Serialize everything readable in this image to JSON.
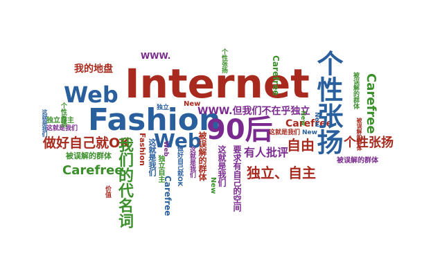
{
  "colors": {
    "maroon": "#a82a1e",
    "blue": "#2a5f9e",
    "green": "#3a8f2a",
    "purple": "#7a2a8f",
    "black": "#222222"
  },
  "words": {
    "internet": "Internet",
    "fashion": "Fashion",
    "web_big": "Web",
    "web_mid": "Web",
    "nineties": "90后",
    "gexing_big": "个性张扬",
    "gexing_small": "个性张扬",
    "duli_zizhu_big": "独立、自主",
    "duli_zizhu_small": "独立自主",
    "zuohao_ok": "做好自己就OK",
    "women_daiming": "我们的代名词",
    "carefree_blue": "Carefree",
    "carefree_right": "Carefree",
    "carefree_mid": "Carefree",
    "carefree_top": "Carefree",
    "carefree_vert": "Carefree",
    "www_top": "WWW.",
    "www_mid": "WWW.但我们不在乎独立",
    "wode_dipan": "我的地盘",
    "ziyou": "自由",
    "youren_pingping": "有人批评",
    "bei_wujie_1": "被误解的群体",
    "bei_wujie_2": "被误解的群体",
    "bei_wujie_3": "被误解的群体",
    "bei_wujie_4": "被误解的群体",
    "zhe_jiushi_1": "这就是我们",
    "zhe_jiushi_2": "这就是我们",
    "zhe_jiushi_3": "这就是我们",
    "zhe_jiushi_4": "这就是我们",
    "zhe_jiushi_5": "这就是我们",
    "new_1": "New",
    "new_2": "New",
    "new_3": "New",
    "new_4": "New",
    "new_5": "New",
    "duli": "独立",
    "gexing_zhangyang_v": "个性张扬",
    "duli_zizhu_v": "独立自主",
    "fashion_v": "Fashion",
    "yaoqiu_ziji": "要求有自己的空间",
    "zuohao_ziji_v": "做好自己就OK",
    "jia_zhi": "价值",
    "web_v": "Web",
    "bei_wujie_v": "被误解的群体",
    "zhe_jiushi_v": "这就是我们",
    "kongjian_v": "这就是我们",
    "gexing_small_v": "个性张扬"
  }
}
